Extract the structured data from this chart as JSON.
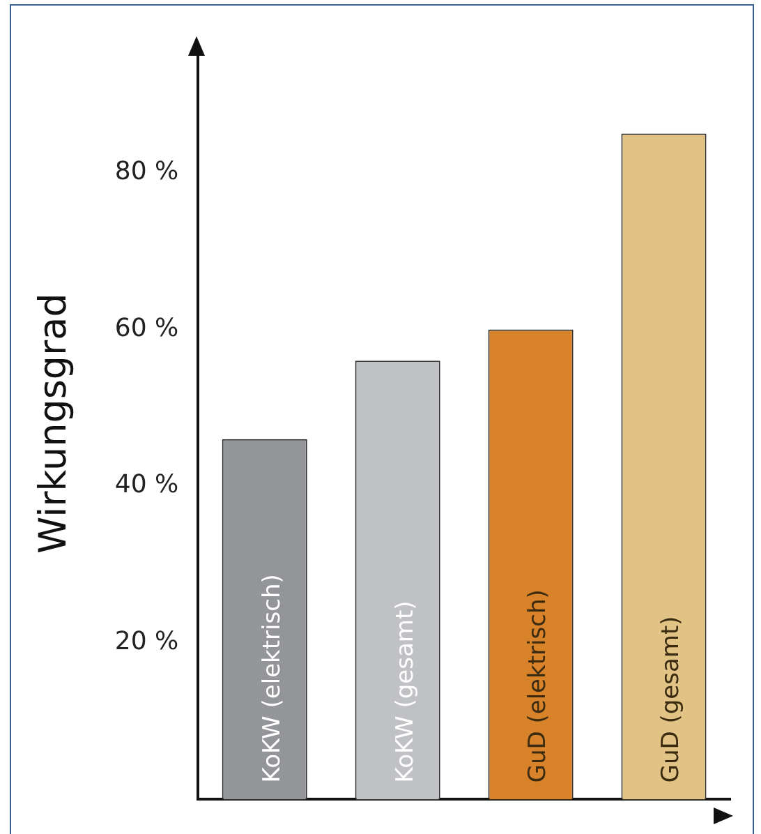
{
  "chart_data": {
    "type": "bar",
    "ylabel": "Wirkungsgrad",
    "categories": [
      "KoKW (elektrisch)",
      "KoKW (gesamt)",
      "GuD (elektrisch)",
      "GuD (gesamt)"
    ],
    "values": [
      46,
      56,
      60,
      85
    ],
    "colors": [
      "#939598",
      "#c0c1c4",
      "#d8822a",
      "#e0c385"
    ],
    "ylim": [
      0,
      96
    ],
    "yticks": [
      {
        "value": 20,
        "label": "20 %"
      },
      {
        "value": 40,
        "label": "40 %"
      },
      {
        "value": 60,
        "label": "60 %"
      },
      {
        "value": 80,
        "label": "80 %"
      }
    ],
    "grid": false,
    "legend": false,
    "tick_labels": "y"
  }
}
